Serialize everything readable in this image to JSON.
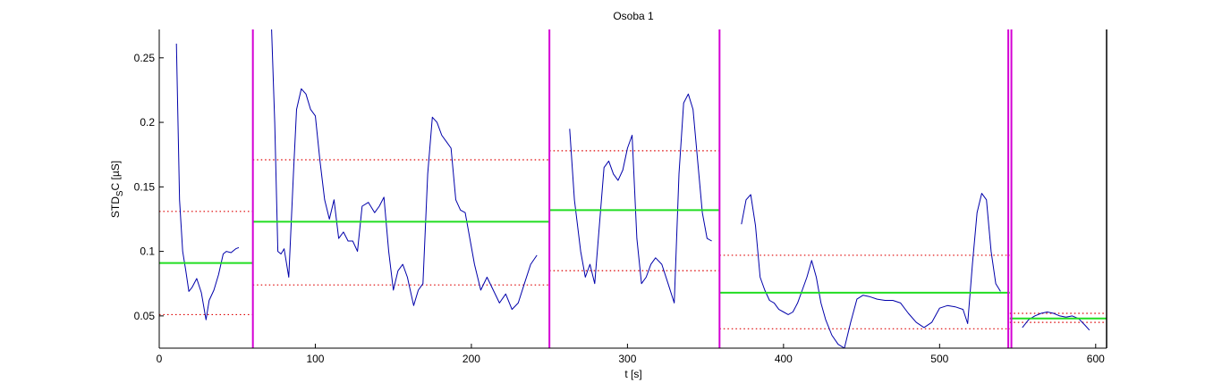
{
  "chart_data": {
    "type": "line",
    "title": "Osoba 1",
    "xlabel": "t [s]",
    "ylabel": {
      "main": "STD",
      "sub": "S",
      "rest": "C [µS]"
    },
    "xlim": [
      0,
      607
    ],
    "ylim": [
      0.025,
      0.272
    ],
    "xticks": [
      0,
      100,
      200,
      300,
      400,
      500,
      600
    ],
    "yticks": [
      0.05,
      0.1,
      0.15,
      0.2,
      0.25
    ],
    "ytick_labels": [
      "0.05",
      "0.1",
      "0.15",
      "0.2",
      "0.25"
    ],
    "grid": false,
    "colors": {
      "signal": "#0000aa",
      "boundary": "#d400d4",
      "mean": "#22dd22",
      "band": "#dd0000",
      "axis": "#000000"
    },
    "boundaries": [
      60,
      250,
      359,
      544,
      546
    ],
    "segments": [
      {
        "x0": 0,
        "x1": 60,
        "mean": 0.091,
        "upper": 0.131,
        "lower": 0.051
      },
      {
        "x0": 60,
        "x1": 250,
        "mean": 0.123,
        "upper": 0.171,
        "lower": 0.074
      },
      {
        "x0": 250,
        "x1": 359,
        "mean": 0.132,
        "upper": 0.178,
        "lower": 0.085
      },
      {
        "x0": 359,
        "x1": 545,
        "mean": 0.068,
        "upper": 0.097,
        "lower": 0.04
      },
      {
        "x0": 545,
        "x1": 607,
        "mean": 0.048,
        "upper": 0.052,
        "lower": 0.045
      }
    ],
    "series": [
      {
        "x": [
          11,
          13,
          15,
          17,
          19,
          21,
          24,
          27,
          30,
          32,
          35,
          38,
          41,
          43,
          46,
          49,
          51
        ],
        "y": [
          0.261,
          0.14,
          0.1,
          0.085,
          0.069,
          0.072,
          0.079,
          0.068,
          0.047,
          0.062,
          0.07,
          0.082,
          0.098,
          0.1,
          0.099,
          0.102,
          0.103
        ]
      },
      {
        "x": [
          72,
          74,
          76,
          78,
          80,
          83,
          86,
          88,
          91,
          94,
          97,
          100,
          103,
          106,
          109,
          112,
          115,
          118,
          121,
          124,
          127,
          130,
          134,
          138,
          141,
          144,
          147,
          150,
          153,
          156,
          159,
          163,
          166,
          169,
          172,
          175,
          178,
          181,
          184,
          187,
          190,
          193,
          196,
          199,
          202,
          206,
          210,
          214,
          218,
          222,
          226,
          230,
          234,
          238,
          242
        ],
        "y": [
          0.272,
          0.2,
          0.1,
          0.098,
          0.102,
          0.08,
          0.16,
          0.21,
          0.226,
          0.222,
          0.21,
          0.205,
          0.17,
          0.14,
          0.125,
          0.14,
          0.11,
          0.115,
          0.108,
          0.108,
          0.1,
          0.135,
          0.138,
          0.13,
          0.135,
          0.142,
          0.1,
          0.07,
          0.085,
          0.09,
          0.08,
          0.058,
          0.07,
          0.075,
          0.16,
          0.204,
          0.2,
          0.19,
          0.185,
          0.18,
          0.14,
          0.132,
          0.13,
          0.11,
          0.09,
          0.07,
          0.08,
          0.07,
          0.06,
          0.067,
          0.055,
          0.06,
          0.075,
          0.09,
          0.097
        ]
      },
      {
        "x": [
          263,
          266,
          268,
          270,
          273,
          276,
          279,
          282,
          285,
          288,
          291,
          294,
          297,
          300,
          303,
          306,
          309,
          312,
          315,
          318,
          322,
          326,
          330,
          333,
          336,
          339,
          342,
          345,
          348,
          351,
          354
        ],
        "y": [
          0.195,
          0.14,
          0.12,
          0.1,
          0.08,
          0.09,
          0.075,
          0.12,
          0.165,
          0.17,
          0.16,
          0.155,
          0.163,
          0.18,
          0.19,
          0.11,
          0.075,
          0.08,
          0.09,
          0.095,
          0.09,
          0.075,
          0.06,
          0.16,
          0.215,
          0.222,
          0.21,
          0.17,
          0.13,
          0.11,
          0.108
        ]
      },
      {
        "x": [
          373,
          376,
          379,
          382,
          385,
          388,
          391,
          394,
          397,
          400,
          403,
          406,
          409,
          412,
          415,
          418,
          421,
          424,
          427,
          431,
          435,
          439,
          443,
          447,
          451,
          455,
          460,
          465,
          470,
          475,
          480,
          485,
          490,
          495,
          500,
          505,
          510,
          515,
          518,
          521,
          524,
          527,
          530,
          533,
          536,
          539
        ],
        "y": [
          0.121,
          0.14,
          0.144,
          0.12,
          0.08,
          0.07,
          0.062,
          0.06,
          0.055,
          0.053,
          0.051,
          0.053,
          0.06,
          0.07,
          0.08,
          0.093,
          0.08,
          0.06,
          0.047,
          0.035,
          0.028,
          0.025,
          0.045,
          0.063,
          0.066,
          0.065,
          0.063,
          0.062,
          0.062,
          0.06,
          0.052,
          0.045,
          0.041,
          0.045,
          0.056,
          0.058,
          0.057,
          0.055,
          0.044,
          0.09,
          0.13,
          0.145,
          0.14,
          0.1,
          0.075,
          0.069
        ]
      },
      {
        "x": [
          553,
          557,
          561,
          565,
          569,
          573,
          577,
          581,
          585,
          589,
          593,
          596
        ],
        "y": [
          0.041,
          0.047,
          0.05,
          0.052,
          0.053,
          0.052,
          0.05,
          0.049,
          0.05,
          0.048,
          0.043,
          0.039
        ]
      }
    ]
  }
}
